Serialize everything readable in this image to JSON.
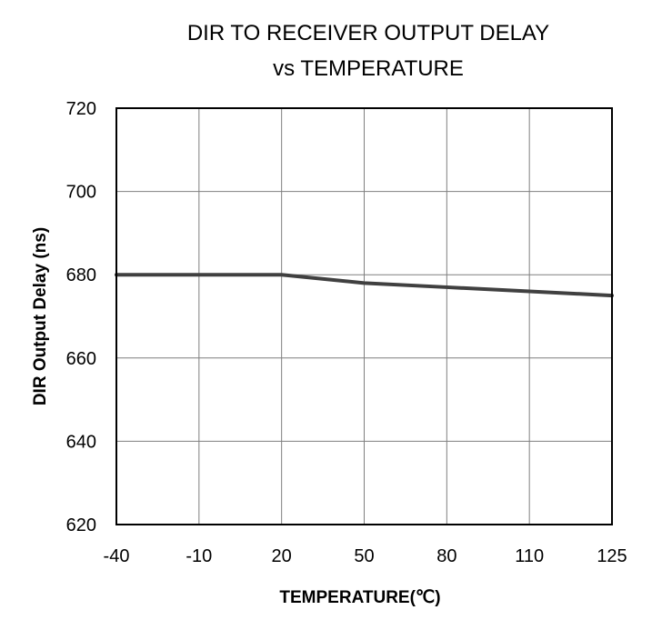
{
  "chart_data": {
    "type": "line",
    "title_line1": "DIR  TO RECEIVER OUTPUT DELAY",
    "title_line2": "vs TEMPERATURE",
    "xlabel": "TEMPERATURE(℃)",
    "ylabel": "DIR Output Delay (ns)",
    "x_ticks": [
      "-40",
      "-10",
      "20",
      "50",
      "80",
      "110",
      "125"
    ],
    "y_ticks": [
      720,
      700,
      680,
      660,
      640,
      620
    ],
    "ylim": [
      620,
      720
    ],
    "grid": true,
    "series": [
      {
        "x": [
          -40,
          -10,
          20,
          50,
          80,
          110,
          125
        ],
        "y": [
          680,
          680,
          680,
          678,
          677,
          676,
          675
        ],
        "color": "#404040"
      }
    ]
  }
}
